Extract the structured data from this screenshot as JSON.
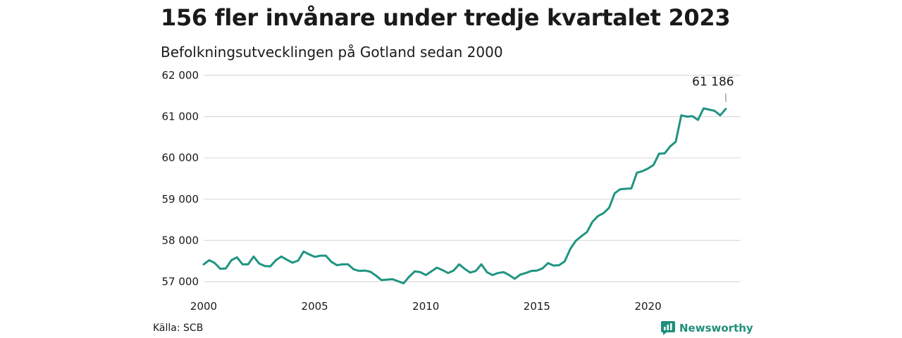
{
  "title": "156 fler invånare under tredje kvartalet 2023",
  "subtitle": "Befolkningsutvecklingen på Gotland sedan 2000",
  "source": "Källa: SCB",
  "brand": "Newsworthy",
  "colors": {
    "line": "#1f9582",
    "grid": "#dcdcdc",
    "text": "#1a1a1a",
    "brand": "#1f8f7a"
  },
  "chart_data": {
    "type": "line",
    "title": "156 fler invånare under tredje kvartalet 2023",
    "subtitle": "Befolkningsutvecklingen på Gotland sedan 2000",
    "xlabel": "",
    "ylabel": "",
    "x_range": [
      2000,
      2024
    ],
    "ylim": [
      57000,
      62000
    ],
    "x_ticks": [
      2000,
      2005,
      2010,
      2015,
      2020
    ],
    "x_tick_labels": [
      "2000",
      "2005",
      "2010",
      "2015",
      "2020"
    ],
    "y_ticks": [
      57000,
      58000,
      59000,
      60000,
      61000,
      62000
    ],
    "y_tick_labels": [
      "57 000",
      "58 000",
      "59 000",
      "60 000",
      "61 000",
      "62 000"
    ],
    "grid": "horizontal",
    "annotation": {
      "label": "61 186",
      "x": 2023.5,
      "y": 61186
    },
    "series": [
      {
        "x": [
          2000.0,
          2000.25,
          2000.5,
          2000.75,
          2001.0,
          2001.25,
          2001.5,
          2001.75,
          2002.0,
          2002.25,
          2002.5,
          2002.75,
          2003.0,
          2003.25,
          2003.5,
          2003.75,
          2004.0,
          2004.25,
          2004.5,
          2004.75,
          2005.0,
          2005.25,
          2005.5,
          2005.75,
          2006.0,
          2006.25,
          2006.5,
          2006.75,
          2007.0,
          2007.25,
          2007.5,
          2007.75,
          2008.0,
          2008.25,
          2008.5,
          2008.75,
          2009.0,
          2009.25,
          2009.5,
          2009.75,
          2010.0,
          2010.25,
          2010.5,
          2010.75,
          2011.0,
          2011.25,
          2011.5,
          2011.75,
          2012.0,
          2012.25,
          2012.5,
          2012.75,
          2013.0,
          2013.25,
          2013.5,
          2013.75,
          2014.0,
          2014.25,
          2014.5,
          2014.75,
          2015.0,
          2015.25,
          2015.5,
          2015.75,
          2016.0,
          2016.25,
          2016.5,
          2016.75,
          2017.0,
          2017.25,
          2017.5,
          2017.75,
          2018.0,
          2018.25,
          2018.5,
          2018.75,
          2019.0,
          2019.25,
          2019.5,
          2019.75,
          2020.0,
          2020.25,
          2020.5,
          2020.75,
          2021.0,
          2021.25,
          2021.5,
          2021.75,
          2022.0,
          2022.25,
          2022.5,
          2022.75,
          2023.0,
          2023.25,
          2023.5
        ],
        "values": [
          57420,
          57520,
          57450,
          57310,
          57320,
          57520,
          57590,
          57420,
          57420,
          57610,
          57440,
          57380,
          57370,
          57520,
          57610,
          57530,
          57460,
          57510,
          57730,
          57660,
          57600,
          57630,
          57630,
          57480,
          57400,
          57420,
          57420,
          57300,
          57260,
          57270,
          57240,
          57150,
          57040,
          57050,
          57060,
          57010,
          56960,
          57120,
          57250,
          57230,
          57160,
          57250,
          57340,
          57280,
          57210,
          57270,
          57420,
          57310,
          57220,
          57260,
          57420,
          57230,
          57160,
          57210,
          57230,
          57160,
          57070,
          57170,
          57210,
          57260,
          57270,
          57320,
          57450,
          57390,
          57400,
          57490,
          57790,
          57990,
          58100,
          58200,
          58450,
          58590,
          58660,
          58790,
          59140,
          59240,
          59250,
          59260,
          59640,
          59680,
          59740,
          59830,
          60100,
          60110,
          60280,
          60390,
          61030,
          61000,
          61010,
          60920,
          61200,
          61170,
          61140,
          61030,
          61186
        ]
      }
    ]
  }
}
